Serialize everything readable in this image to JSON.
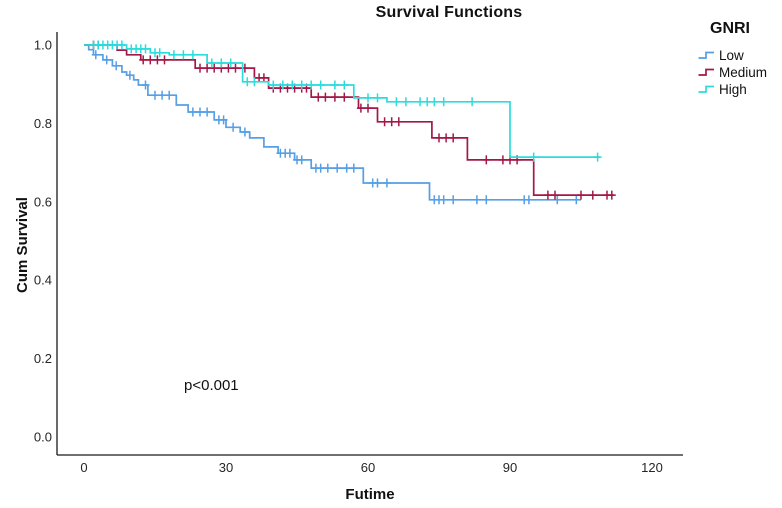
{
  "figure": {
    "title": "Survival Functions",
    "x_axis": {
      "label": "Futime",
      "tick_labels": [
        "0",
        "30",
        "60",
        "90",
        "120"
      ]
    },
    "y_axis": {
      "label": "Cum Survival",
      "tick_labels": [
        "0.0",
        "0.2",
        "0.4",
        "0.6",
        "0.8",
        "1.0"
      ]
    },
    "annotation": "p<0.001",
    "legend": {
      "title": "GNRI",
      "entries": [
        {
          "label": "Low",
          "color": "#569FE5"
        },
        {
          "label": "Medium",
          "color": "#A31848"
        },
        {
          "label": "High",
          "color": "#2BDCDC"
        }
      ]
    }
  },
  "chart_data": {
    "type": "line",
    "subtype": "kaplan-meier-step",
    "title": "Survival Functions",
    "xlabel": "Futime",
    "ylabel": "Cum Survival",
    "xlim": [
      0,
      120
    ],
    "ylim": [
      0.0,
      1.0
    ],
    "x_ticks": [
      0,
      30,
      60,
      90,
      120
    ],
    "y_ticks": [
      0.0,
      0.2,
      0.4,
      0.6,
      0.8,
      1.0
    ],
    "grid": false,
    "legend_position": "right",
    "legend_title": "GNRI",
    "annotation": {
      "text": "p<0.001",
      "x": 25,
      "y": 0.12
    },
    "series": [
      {
        "name": "Low",
        "color": "#569FE5",
        "steps": [
          [
            0,
            1.0
          ],
          [
            1,
            0.988
          ],
          [
            2,
            0.975
          ],
          [
            4,
            0.962
          ],
          [
            6,
            0.947
          ],
          [
            8,
            0.931
          ],
          [
            9,
            0.923
          ],
          [
            10.5,
            0.911
          ],
          [
            11.5,
            0.898
          ],
          [
            13.5,
            0.872
          ],
          [
            19.5,
            0.847
          ],
          [
            22,
            0.829
          ],
          [
            27.5,
            0.809
          ],
          [
            30,
            0.79
          ],
          [
            33,
            0.778
          ],
          [
            35,
            0.763
          ],
          [
            38,
            0.74
          ],
          [
            41,
            0.724
          ],
          [
            44.5,
            0.707
          ],
          [
            48,
            0.686
          ],
          [
            59,
            0.648
          ],
          [
            73,
            0.605
          ]
        ],
        "end_time": 105,
        "censor_times": [
          2.5,
          4.8,
          6.8,
          9.7,
          13,
          15,
          16.5,
          18,
          23,
          24.5,
          26,
          28.5,
          29.5,
          31.5,
          34,
          41.5,
          42.5,
          43.5,
          45,
          46,
          49,
          50,
          51.5,
          53.5,
          55.5,
          57,
          61,
          62,
          64,
          74,
          75,
          76,
          78,
          83,
          85,
          93,
          94,
          100,
          104
        ]
      },
      {
        "name": "Medium",
        "color": "#A31848",
        "steps": [
          [
            0,
            1.0
          ],
          [
            7,
            0.987
          ],
          [
            9,
            0.975
          ],
          [
            12,
            0.962
          ],
          [
            23.5,
            0.941
          ],
          [
            36,
            0.916
          ],
          [
            39,
            0.89
          ],
          [
            48,
            0.867
          ],
          [
            58,
            0.839
          ],
          [
            62,
            0.804
          ],
          [
            73.5,
            0.763
          ],
          [
            81,
            0.707
          ],
          [
            95,
            0.617
          ]
        ],
        "end_time": 112,
        "censor_times": [
          2,
          3,
          12.5,
          14,
          15.5,
          17,
          24.5,
          26,
          27.5,
          29,
          30.5,
          32,
          34,
          37,
          38,
          40,
          41.5,
          43,
          44.5,
          46,
          47,
          49.5,
          51,
          53,
          55,
          58.5,
          60,
          63.5,
          65,
          66.5,
          75,
          76.5,
          78,
          85,
          88.5,
          90,
          91.5,
          98,
          99.5,
          105,
          107.5,
          110.5,
          111.5
        ]
      },
      {
        "name": "High",
        "color": "#2BDCDC",
        "steps": [
          [
            0,
            1.0
          ],
          [
            9,
            0.99
          ],
          [
            14,
            0.98
          ],
          [
            18,
            0.975
          ],
          [
            26,
            0.954
          ],
          [
            33.5,
            0.906
          ],
          [
            39,
            0.898
          ],
          [
            57,
            0.865
          ],
          [
            64,
            0.855
          ],
          [
            90,
            0.714
          ]
        ],
        "end_time": 109,
        "censor_times": [
          2,
          3,
          4,
          5,
          6,
          7,
          8,
          10,
          11,
          12,
          13,
          15,
          16,
          19,
          21,
          23,
          27,
          29,
          31,
          34.5,
          36,
          40,
          42,
          44,
          46,
          48,
          50,
          53,
          55,
          60,
          62,
          66,
          68,
          71,
          72.5,
          74,
          76,
          82,
          95,
          108.5
        ]
      }
    ]
  }
}
